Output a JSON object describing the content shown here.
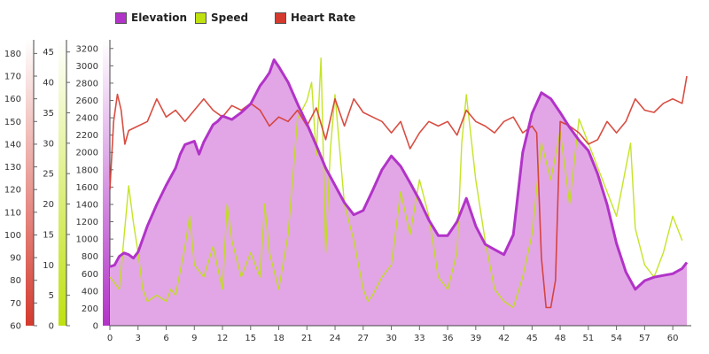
{
  "chart_data": {
    "type": "area",
    "x_ticks": [
      0,
      3,
      6,
      9,
      12,
      15,
      18,
      21,
      24,
      27,
      30,
      33,
      36,
      39,
      42,
      45,
      48,
      51,
      54,
      57,
      60
    ],
    "xlim": [
      0,
      61.5
    ],
    "legend": {
      "placement": "top",
      "entries": [
        "Elevation",
        "Speed",
        "Heart Rate"
      ]
    },
    "grid": false,
    "series": [
      {
        "name": "Elevation",
        "kind": "area",
        "color": "#b233c8",
        "fill": "#e2a6e6",
        "axis": {
          "ticks": [
            0,
            200,
            400,
            600,
            800,
            1000,
            1200,
            1400,
            1600,
            1800,
            2000,
            2200,
            2400,
            2600,
            2800,
            3000,
            3200
          ],
          "ylim": [
            0,
            3300
          ]
        },
        "x": [
          0,
          0.5,
          1,
          1.5,
          2,
          2.5,
          3,
          4,
          5,
          6,
          7,
          7.5,
          8,
          9,
          9.5,
          10,
          11,
          11.5,
          12,
          13,
          14,
          15,
          16,
          16.5,
          17,
          17.5,
          18,
          19,
          20,
          21,
          22,
          23,
          24,
          25,
          26,
          27,
          28,
          29,
          30,
          31,
          32,
          33,
          34,
          35,
          36,
          37,
          38,
          39,
          40,
          41,
          42,
          43,
          44,
          45,
          46,
          47,
          48,
          49,
          50,
          51,
          52,
          53,
          54,
          55,
          56,
          57,
          58,
          59,
          60,
          61,
          61.5
        ],
        "y": [
          680,
          700,
          800,
          840,
          820,
          780,
          850,
          1150,
          1400,
          1620,
          1820,
          1980,
          2090,
          2130,
          1980,
          2120,
          2320,
          2360,
          2420,
          2380,
          2460,
          2560,
          2770,
          2840,
          2920,
          3070,
          2990,
          2810,
          2560,
          2330,
          2080,
          1820,
          1620,
          1420,
          1280,
          1330,
          1560,
          1800,
          1960,
          1840,
          1650,
          1450,
          1220,
          1040,
          1040,
          1200,
          1470,
          1150,
          940,
          880,
          820,
          1050,
          2000,
          2450,
          2690,
          2620,
          2460,
          2290,
          2140,
          2020,
          1750,
          1400,
          950,
          620,
          420,
          520,
          560,
          580,
          600,
          660,
          730
        ]
      },
      {
        "name": "Speed",
        "kind": "line",
        "color": "#bfe10f",
        "axis": {
          "ticks": [
            0,
            5,
            10,
            15,
            20,
            25,
            30,
            35,
            40,
            45
          ],
          "ylim": [
            0,
            47
          ]
        },
        "x": [
          0,
          1,
          2,
          2.5,
          3,
          3.5,
          4,
          5,
          6,
          6.5,
          7,
          8,
          8.5,
          9,
          10,
          11,
          12,
          12.5,
          13,
          14,
          15,
          16,
          16.5,
          17,
          18,
          19,
          20,
          21,
          21.5,
          22,
          22.5,
          23,
          23.5,
          24,
          25,
          26,
          27,
          27.5,
          28,
          29,
          30,
          31,
          32,
          33,
          34,
          35,
          36,
          37,
          37.5,
          38,
          39,
          40,
          41,
          42,
          43,
          44,
          45,
          46,
          47,
          48,
          49,
          50,
          51,
          52,
          53,
          54,
          55,
          55.5,
          56,
          57,
          58,
          59,
          60,
          61
        ],
        "y": [
          8,
          6,
          23,
          17,
          12,
          6,
          4,
          5,
          4,
          6,
          5,
          13,
          18,
          10,
          8,
          13,
          6,
          20,
          14,
          8,
          12,
          8,
          20,
          12,
          6,
          15,
          34,
          37,
          40,
          28,
          44,
          12,
          29,
          38,
          20,
          14,
          6,
          4,
          5,
          8,
          10,
          22,
          15,
          24,
          18,
          8,
          6,
          12,
          30,
          38,
          24,
          14,
          6,
          4,
          3,
          8,
          15,
          30,
          24,
          32,
          20,
          34,
          30,
          26,
          22,
          18,
          26,
          30,
          16,
          10,
          8,
          12,
          18,
          14
        ]
      },
      {
        "name": "Heart Rate",
        "kind": "line",
        "color": "#d43a2e",
        "axis": {
          "ticks": [
            60,
            70,
            80,
            90,
            100,
            110,
            120,
            130,
            140,
            150,
            160,
            170,
            180
          ],
          "ylim": [
            60,
            186
          ]
        },
        "x": [
          0,
          0.4,
          0.8,
          1.2,
          1.6,
          2,
          3,
          4,
          5,
          6,
          7,
          8,
          9,
          10,
          11,
          12,
          13,
          14,
          15,
          16,
          17,
          18,
          19,
          20,
          21,
          22,
          23,
          24,
          25,
          26,
          27,
          28,
          29,
          30,
          31,
          32,
          33,
          34,
          35,
          36,
          37,
          38,
          39,
          40,
          41,
          42,
          43,
          44,
          45,
          45.5,
          46,
          46.5,
          47,
          47.5,
          48,
          49,
          50,
          51,
          52,
          53,
          54,
          55,
          56,
          57,
          58,
          59,
          60,
          61,
          61.5
        ],
        "y": [
          120,
          150,
          162,
          155,
          140,
          146,
          148,
          150,
          160,
          152,
          155,
          150,
          155,
          160,
          155,
          152,
          157,
          155,
          158,
          155,
          148,
          152,
          150,
          155,
          148,
          156,
          142,
          160,
          148,
          160,
          154,
          152,
          150,
          145,
          150,
          138,
          145,
          150,
          148,
          150,
          144,
          155,
          150,
          148,
          145,
          150,
          152,
          145,
          148,
          145,
          90,
          68,
          68,
          80,
          150,
          148,
          145,
          140,
          142,
          150,
          145,
          150,
          160,
          155,
          154,
          158,
          160,
          158,
          170
        ]
      }
    ]
  }
}
